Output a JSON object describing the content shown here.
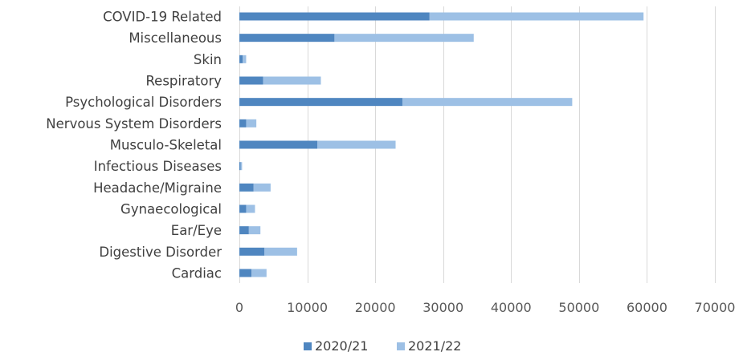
{
  "chart_data": {
    "type": "bar",
    "orientation": "horizontal",
    "stacked": true,
    "title": "",
    "xlabel": "",
    "ylabel": "",
    "categories": [
      "COVID-19 Related",
      "Miscellaneous",
      "Skin",
      "Respiratory",
      "Psychological Disorders",
      "Nervous System Disorders",
      "Musculo-Skeletal",
      "Infectious Diseases",
      "Headache/Migraine",
      "Gynaecological",
      "Ear/Eye",
      "Digestive Disorder",
      "Cardiac"
    ],
    "series": [
      {
        "name": "2020/21",
        "color": "#4f86c0",
        "values": [
          28000,
          14000,
          500,
          3500,
          24000,
          1000,
          11500,
          200,
          2100,
          1000,
          1400,
          3700,
          1800
        ]
      },
      {
        "name": "2021/22",
        "color": "#9dc0e5",
        "values": [
          31500,
          20500,
          500,
          8500,
          25000,
          1500,
          11500,
          200,
          2500,
          1300,
          1700,
          4800,
          2200
        ]
      }
    ],
    "xlim": [
      0,
      70000
    ],
    "xticks": [
      0,
      10000,
      20000,
      30000,
      40000,
      50000,
      60000,
      70000
    ],
    "grid": "vertical",
    "legend": "bottom-center"
  }
}
